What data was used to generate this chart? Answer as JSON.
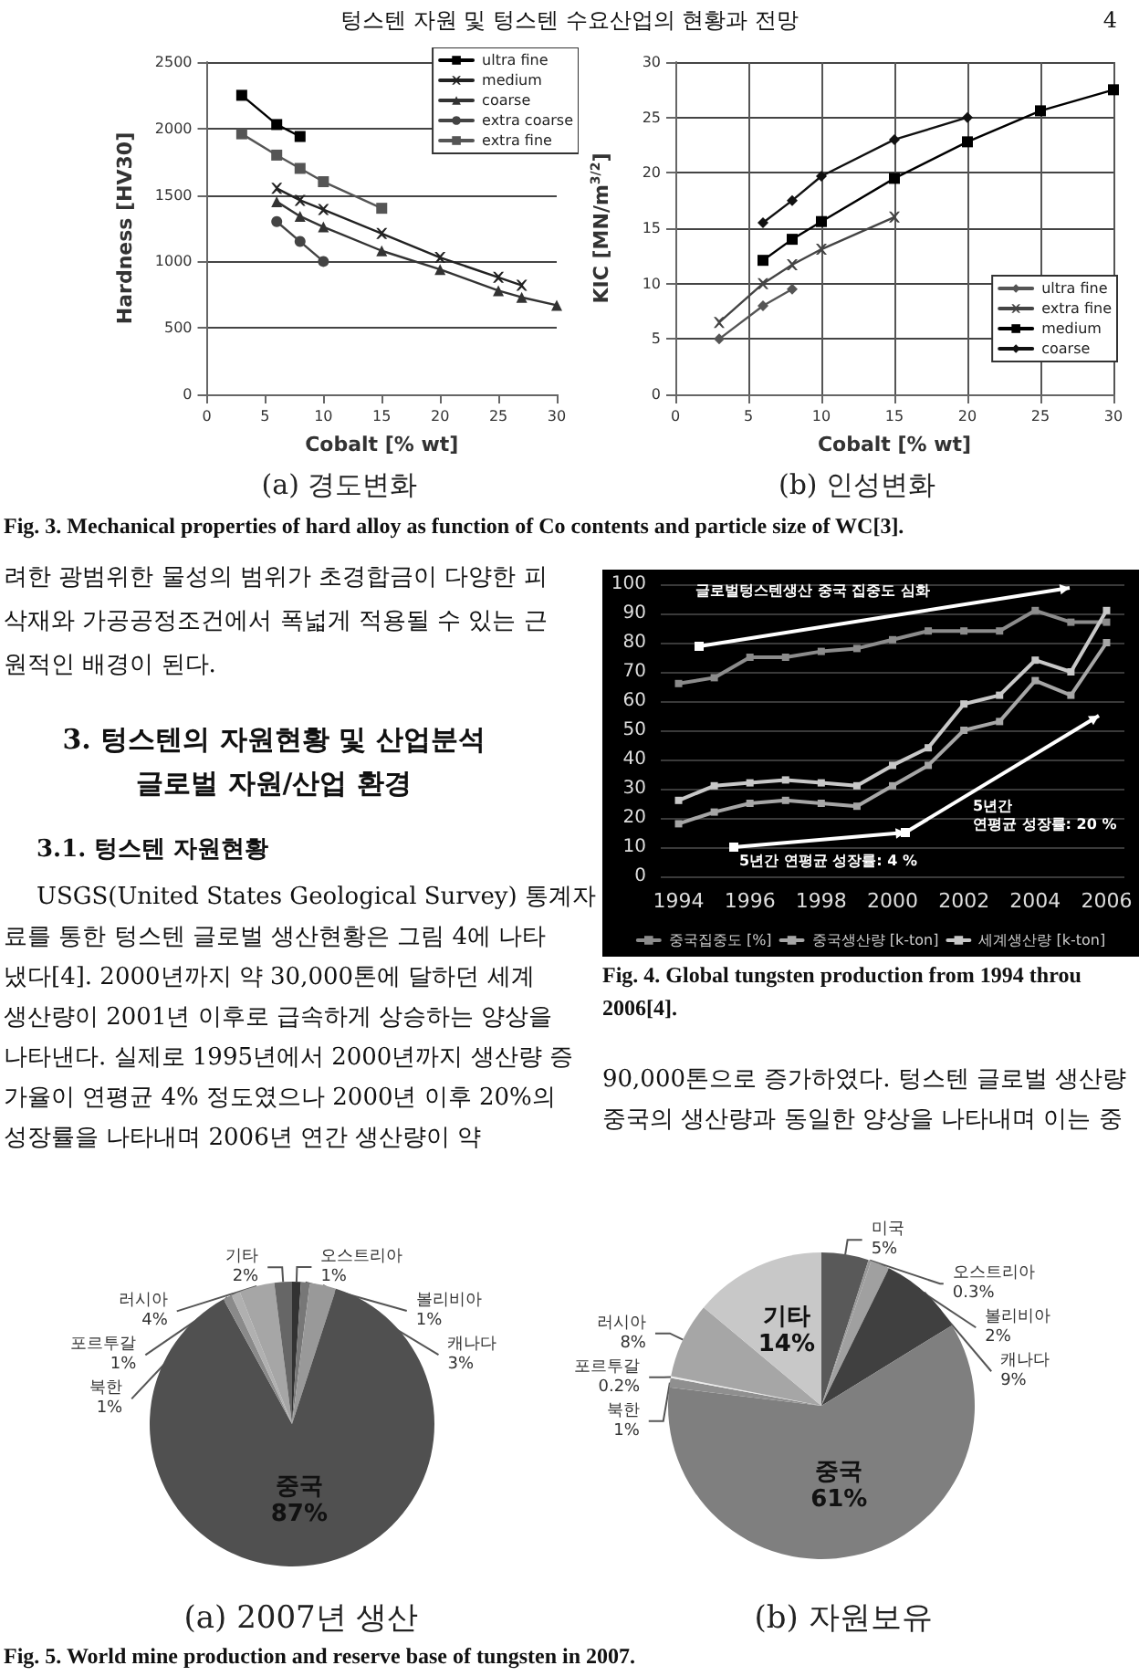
{
  "chart_data": [
    {
      "type": "line",
      "title": "(a) 경도변화",
      "xlabel": "Cobalt [% wt]",
      "ylabel": "Hardness [HV30]",
      "xlim": [
        0,
        30
      ],
      "xticks": [
        0,
        5,
        10,
        15,
        20,
        25,
        30
      ],
      "ylim": [
        0,
        2500
      ],
      "yticks": [
        0,
        500,
        1000,
        1500,
        2000,
        2500
      ],
      "grid": "y",
      "legend": "top right",
      "annotations": [
        "텅스텐 자원 및 텅스텐 수요산업의 현황과 전망",
        "4",
        "Fig. 3. Mechanical properties of hard alloy as function of Co contents and particle size of WC[3]."
      ],
      "series": [
        {
          "name": "ultra fine",
          "color": "#000000",
          "marker": "square",
          "x": [
            3,
            6,
            8
          ],
          "values": [
            2250,
            2030,
            1940
          ]
        },
        {
          "name": "medium",
          "color": "#222222",
          "marker": "cross",
          "x": [
            6,
            8,
            10,
            15,
            20,
            25,
            27
          ],
          "values": [
            1550,
            1460,
            1390,
            1210,
            1030,
            880,
            820
          ]
        },
        {
          "name": "coarse",
          "color": "#333333",
          "marker": "triangle",
          "x": [
            6,
            8,
            10,
            15,
            20,
            25,
            27,
            30
          ],
          "values": [
            1450,
            1340,
            1260,
            1080,
            940,
            780,
            730,
            670
          ]
        },
        {
          "name": "extra coarse",
          "color": "#444444",
          "marker": "circle",
          "x": [
            6,
            8,
            10
          ],
          "values": [
            1300,
            1150,
            1000
          ]
        },
        {
          "name": "extra fine",
          "color": "#555555",
          "marker": "square",
          "x": [
            3,
            6,
            8,
            10,
            15
          ],
          "values": [
            1960,
            1800,
            1700,
            1600,
            1400
          ]
        }
      ]
    },
    {
      "type": "line",
      "title": "(b) 인성변화",
      "xlabel": "Cobalt [% wt]",
      "ylabel": "KIC [MN/m$^{3/2}$]",
      "xlim": [
        0,
        30
      ],
      "xticks": [
        0,
        5,
        10,
        15,
        20,
        25,
        30
      ],
      "ylim": [
        0,
        30
      ],
      "yticks": [
        0,
        5,
        10,
        15,
        20,
        25,
        30
      ],
      "grid": true,
      "legend": "bottom right",
      "series": [
        {
          "name": "ultra fine",
          "color": "#555555",
          "marker": "diamond",
          "x": [
            3,
            6,
            8
          ],
          "values": [
            5,
            8,
            9.5
          ]
        },
        {
          "name": "extra fine",
          "color": "#444444",
          "marker": "cross",
          "x": [
            3,
            6,
            8,
            10,
            15
          ],
          "values": [
            6.5,
            10,
            11.7,
            13.1,
            16
          ]
        },
        {
          "name": "medium",
          "color": "#000000",
          "marker": "square",
          "x": [
            6,
            8,
            10,
            15,
            20,
            25,
            30
          ],
          "values": [
            12.1,
            14,
            15.6,
            19.5,
            22.8,
            25.6,
            27.5
          ]
        },
        {
          "name": "coarse",
          "color": "#111111",
          "marker": "diamond",
          "x": [
            6,
            8,
            10,
            15,
            20
          ],
          "values": [
            15.5,
            17.5,
            19.7,
            23,
            25
          ]
        }
      ]
    },
    {
      "type": "line",
      "categories": [
        "1994",
        null,
        "1996",
        null,
        "1998",
        null,
        "2000",
        null,
        "2002",
        null,
        "2004",
        null,
        "2006"
      ],
      "ylim": [
        0,
        100
      ],
      "yticks": [
        0,
        10,
        20,
        30,
        40,
        50,
        60,
        70,
        80,
        90,
        100
      ],
      "grid": "y",
      "legend": "bottom",
      "marker": "square",
      "annotations": [
        "글로벌텅스텐생산 중국 집중도 심화",
        "5년간\n연평균 성장률: 20 %",
        "5년간 연평균 성장률: 4 %",
        "려한 광범위한 물성의 범위가 초경합금이 다양한 피",
        "삭재와 가공공정조건에서 폭넓게 적용될 수 있는 근",
        "원적인 배경이 된다.",
        "3. 텅스텐의 자원현황 및 산업분석",
        "글로벌 자원/산업 환경",
        "3.1. 텅스텐 자원현황",
        "USGS(United States Geological Survey) 통계자",
        "료를 통한 텅스텐 글로벌 생산현황은 그림 4에 나타",
        "냈다[4]. 2000년까지 약 30,000톤에 달하던 세계",
        "생산량이 2001년 이후로 급속하게 상승하는 양상을",
        "나타낸다. 실제로 1995년에서 2000년까지 생산량 증",
        "가율이 연평균 4% 정도였으나 2000년 이후 20%의",
        "성장률을 나타내며 2006년 연간 생산량이 약",
        "Fig. 4. Global tungsten production from 1994 throu",
        "2006[4].",
        "90,000톤으로 증가하였다. 텅스텐 글로벌 생산량",
        "중국의 생산량과 동일한 양상을 나타내며 이는 중"
      ],
      "series": [
        {
          "name": "중국집중도 [%]",
          "color": "#8c8c8c",
          "values": [
            66,
            68,
            75,
            75,
            77,
            78,
            81,
            84,
            84,
            84,
            91,
            87,
            87
          ]
        },
        {
          "name": "중국생산량 [k-ton]",
          "color": "#a6a6a6",
          "values": [
            18,
            22,
            25,
            26,
            25,
            24,
            31,
            38,
            50,
            53,
            67,
            62,
            80
          ]
        },
        {
          "name": "세계생산량 [k-ton]",
          "color": "#c8c8c8",
          "values": [
            26,
            31,
            32,
            33,
            32,
            31,
            38,
            44,
            59,
            62,
            74,
            70,
            91
          ]
        }
      ]
    },
    {
      "type": "pie",
      "title": "(a) 2007년 생산",
      "categories": [
        "오스트리아",
        "볼리비아",
        "캐나다",
        "중국",
        "북한",
        "포르투갈",
        "러시아",
        "기타"
      ],
      "values": [
        1,
        1,
        3,
        87,
        1,
        1,
        4,
        2
      ],
      "value_labels": [
        "1%",
        "1%",
        "3%",
        "87%",
        "1%",
        "1%",
        "4%",
        "2%"
      ],
      "colors": [
        "#333333",
        "#777777",
        "#999999",
        "#505050",
        "#8a8a8a",
        "#b0b0b0",
        "#a6a6a6",
        "#666666"
      ]
    },
    {
      "type": "pie",
      "title": "(b) 자원보유",
      "categories": [
        "미국",
        "오스트리아",
        "볼리비아",
        "캐나다",
        "중국",
        "북한",
        "포르투갈",
        "러시아",
        "기타"
      ],
      "values": [
        5,
        0.3,
        2,
        9,
        61,
        1,
        0.2,
        8,
        14
      ],
      "value_labels": [
        "5%",
        "0.3%",
        "2%",
        "9%",
        "61%",
        "1%",
        "0.2%",
        "8%",
        "14%"
      ],
      "colors": [
        "#595959",
        "#999999",
        "#a0a0a0",
        "#404040",
        "#7f7f7f",
        "#8f8f8f",
        "#ececec",
        "#a6a6a6",
        "#c8c8c8"
      ],
      "annotations": [
        "Fig. 5. World mine production and reserve base of tungsten in 2007."
      ]
    }
  ]
}
